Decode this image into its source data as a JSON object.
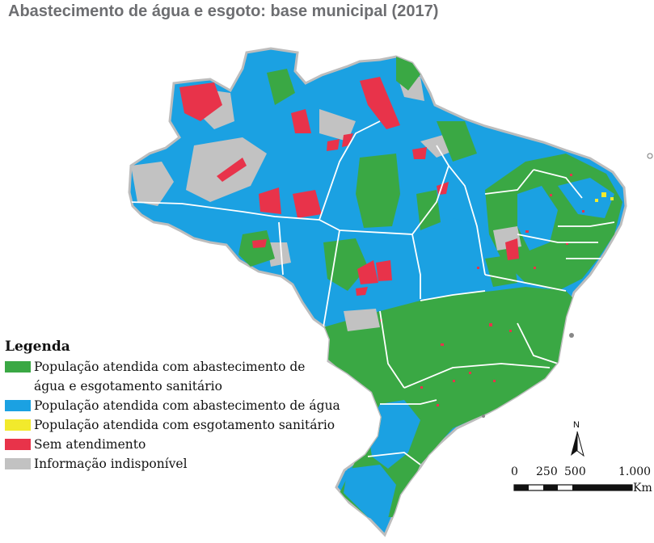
{
  "title": "Abastecimento de água e esgoto: base municipal (2017)",
  "legend": {
    "heading": "Legenda",
    "items": [
      {
        "label_lines": [
          "População atendida com abastecimento de",
          "água e esgotamento sanitário"
        ],
        "color": "#3aa844"
      },
      {
        "label_lines": [
          "População atendida com abastecimento de água"
        ],
        "color": "#1ba1e2"
      },
      {
        "label_lines": [
          "População atendida com esgotamento sanitário"
        ],
        "color": "#f2ea2c"
      },
      {
        "label_lines": [
          "Sem atendimento"
        ],
        "color": "#e8334a"
      },
      {
        "label_lines": [
          "Informação indisponível"
        ],
        "color": "#c2c2c2"
      }
    ]
  },
  "scale": {
    "ticks": [
      "0",
      "250",
      "500",
      "1.000"
    ],
    "unit": "Km"
  },
  "north_label": "N",
  "colors": {
    "title": "#6d6e71",
    "border": "#ffffff"
  }
}
